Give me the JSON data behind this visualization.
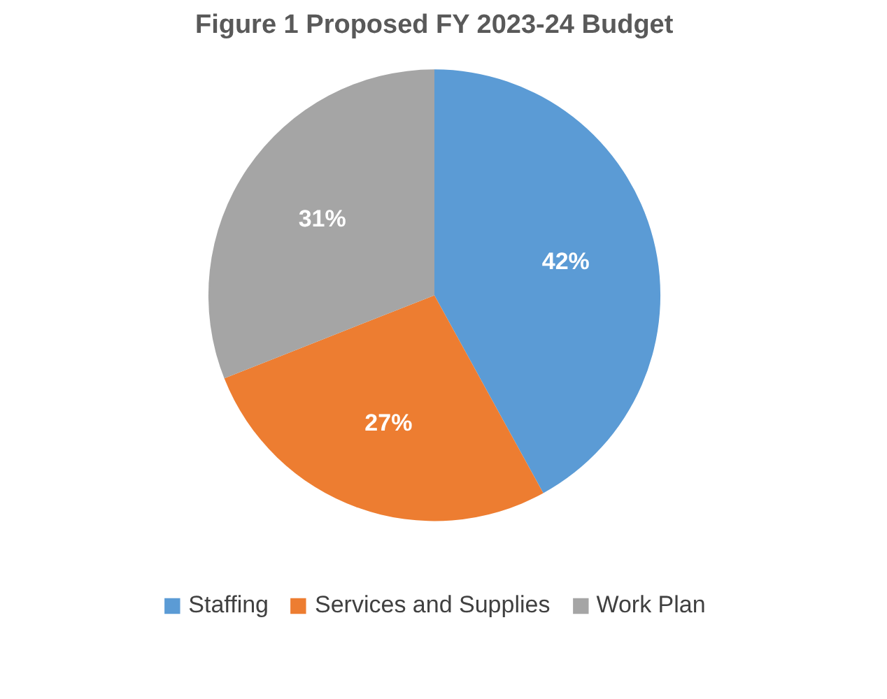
{
  "chart_data": {
    "type": "pie",
    "title": "Figure 1 Proposed FY 2023-24 Budget",
    "categories": [
      "Staffing",
      "Services and Supplies",
      "Work Plan"
    ],
    "values": [
      42,
      27,
      31
    ],
    "colors": [
      "#5b9bd5",
      "#ed7d31",
      "#a5a5a5"
    ],
    "value_labels": [
      "42%",
      "27%",
      "31%"
    ],
    "legend": "bottom"
  }
}
